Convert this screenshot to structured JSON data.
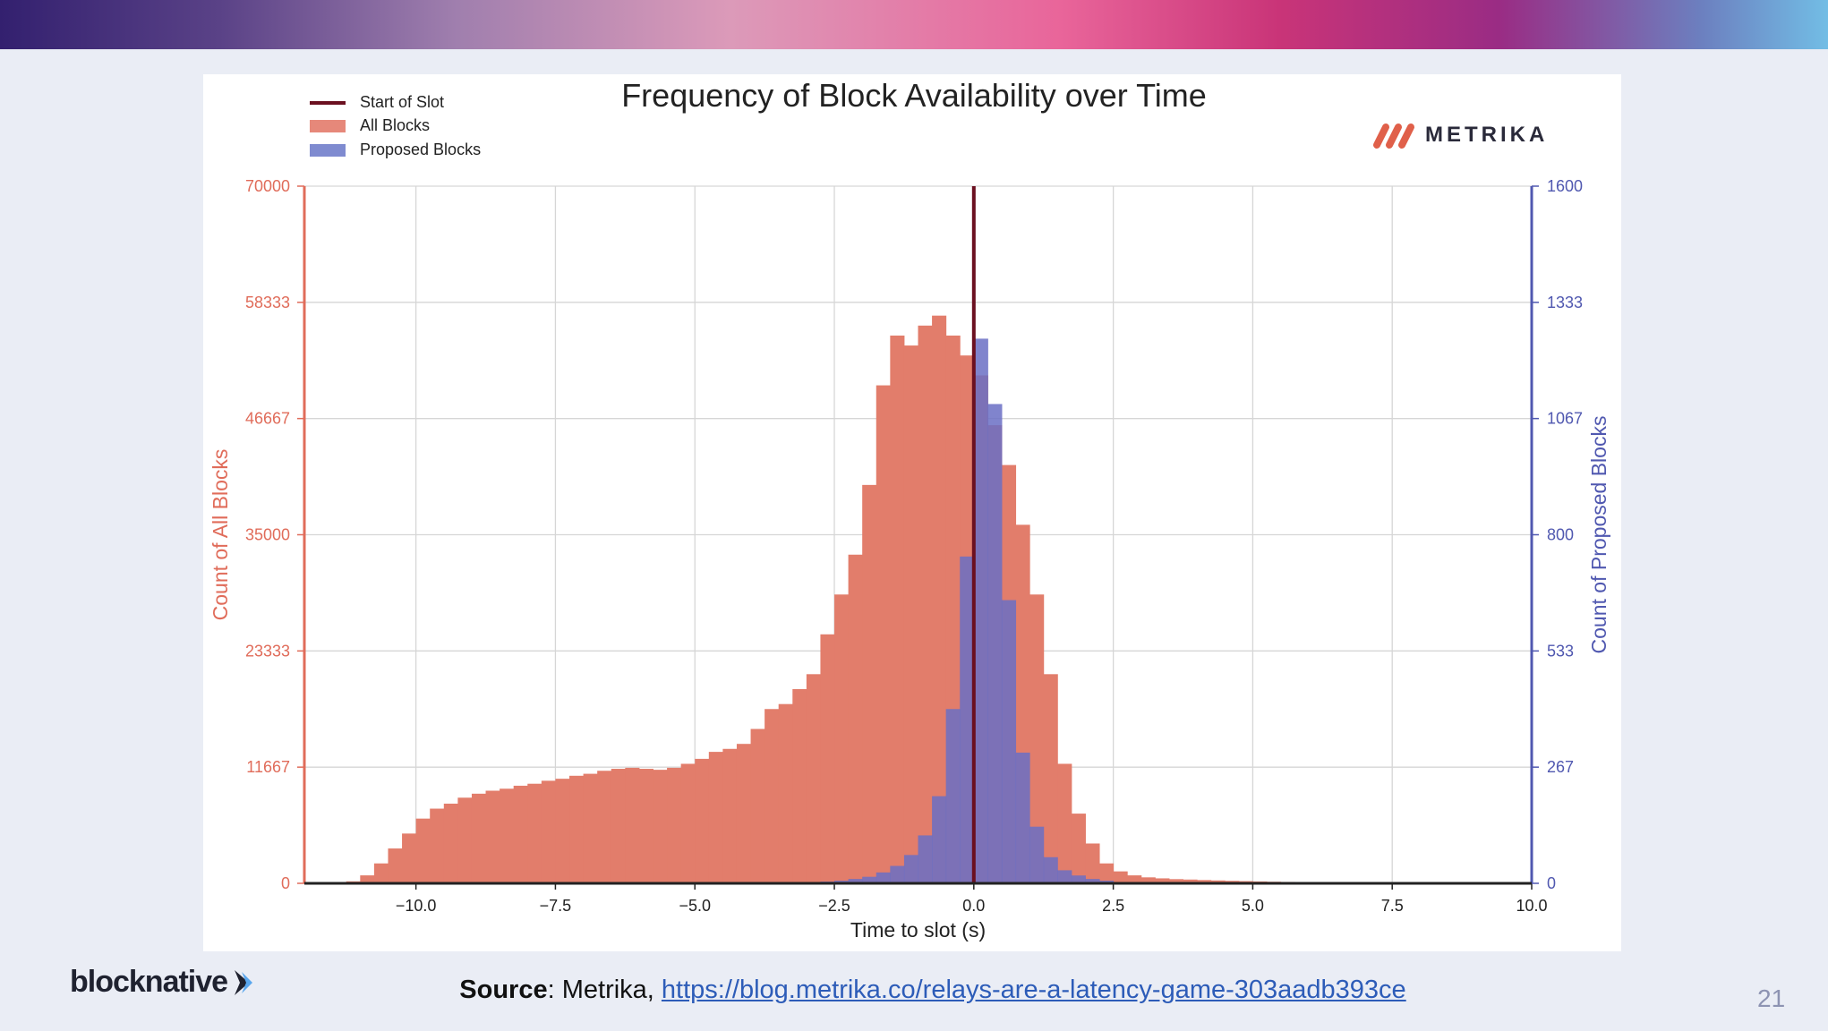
{
  "chart_data": {
    "type": "bar",
    "title": "Frequency of Block Availability over Time",
    "xlabel": "Time to slot (s)",
    "ylabel_left": "Count of All Blocks",
    "ylabel_right": "Count of Proposed Blocks",
    "xlim": [
      -12,
      10
    ],
    "ylim_left": [
      0,
      70000
    ],
    "ylim_right": [
      0,
      1600
    ],
    "bin_width": 0.25,
    "xticks": [
      "−10.0",
      "−7.5",
      "−5.0",
      "−2.5",
      "0.0",
      "2.5",
      "5.0",
      "7.5",
      "10.0"
    ],
    "xtick_values": [
      -10,
      -7.5,
      -5,
      -2.5,
      0,
      2.5,
      5,
      7.5,
      10
    ],
    "yticks_left": [
      "0",
      "11667",
      "23333",
      "35000",
      "46667",
      "58333",
      "70000"
    ],
    "yticks_right": [
      "0",
      "267",
      "533",
      "800",
      "1067",
      "1333",
      "1600"
    ],
    "grid": true,
    "legend_placement": "top-left",
    "legend": [
      "Start of Slot",
      "All Blocks",
      "Proposed Blocks"
    ],
    "start_of_slot_x": 0,
    "colors": {
      "start_of_slot": "#6b1020",
      "all_blocks": "#e27d6b",
      "proposed_blocks": "#6a6fc4",
      "left_axis": "#e06c5a",
      "right_axis": "#5058b0"
    },
    "series": [
      {
        "name": "All Blocks",
        "axis": "left",
        "x": [
          -11.25,
          -11,
          -10.75,
          -10.5,
          -10.25,
          -10,
          -9.75,
          -9.5,
          -9.25,
          -9,
          -8.75,
          -8.5,
          -8.25,
          -8,
          -7.75,
          -7.5,
          -7.25,
          -7,
          -6.75,
          -6.5,
          -6.25,
          -6,
          -5.75,
          -5.5,
          -5.25,
          -5,
          -4.75,
          -4.5,
          -4.25,
          -4,
          -3.75,
          -3.5,
          -3.25,
          -3,
          -2.75,
          -2.5,
          -2.25,
          -2,
          -1.75,
          -1.5,
          -1.25,
          -1,
          -0.75,
          -0.5,
          -0.25,
          0,
          0.25,
          0.5,
          0.75,
          1,
          1.25,
          1.5,
          1.75,
          2,
          2.25,
          2.5,
          2.75,
          3,
          3.25,
          3.5,
          3.75,
          4,
          4.25,
          4.5,
          4.75,
          5,
          5.25,
          5.5,
          5.75,
          6,
          6.25,
          6.5,
          6.75,
          7,
          7.25,
          7.5,
          7.75
        ],
        "values": [
          200,
          800,
          2000,
          3500,
          5000,
          6500,
          7500,
          8000,
          8600,
          9000,
          9300,
          9500,
          9800,
          10000,
          10300,
          10500,
          10800,
          11000,
          11300,
          11500,
          11600,
          11500,
          11400,
          11600,
          12000,
          12500,
          13200,
          13500,
          14000,
          15500,
          17500,
          18000,
          19500,
          21000,
          25000,
          29000,
          33000,
          40000,
          50000,
          55000,
          54000,
          56000,
          57000,
          55000,
          53000,
          51000,
          46000,
          42000,
          36000,
          29000,
          21000,
          12000,
          7000,
          4000,
          2000,
          1200,
          800,
          600,
          500,
          420,
          380,
          330,
          290,
          250,
          220,
          190,
          160,
          140,
          120,
          100,
          80,
          60,
          45,
          35,
          25,
          15,
          10
        ]
      },
      {
        "name": "Proposed Blocks",
        "axis": "right",
        "x": [
          -3,
          -2.75,
          -2.5,
          -2.25,
          -2,
          -1.75,
          -1.5,
          -1.25,
          -1,
          -0.75,
          -0.5,
          -0.25,
          0,
          0.25,
          0.5,
          0.75,
          1,
          1.25,
          1.5,
          1.75,
          2,
          2.25,
          2.5,
          2.75,
          3
        ],
        "values": [
          2,
          4,
          6,
          10,
          15,
          25,
          40,
          65,
          110,
          200,
          400,
          750,
          1250,
          1100,
          650,
          300,
          130,
          60,
          30,
          18,
          10,
          6,
          3,
          2,
          1
        ]
      }
    ]
  },
  "logo": {
    "metrika": "METRIKA",
    "blocknative": "blocknative"
  },
  "footer": {
    "source_label": "Source",
    "source_text": ": Metrika, ",
    "source_link": "https://blog.metrika.co/relays-are-a-latency-game-303aadb393ce",
    "page_number": "21"
  }
}
